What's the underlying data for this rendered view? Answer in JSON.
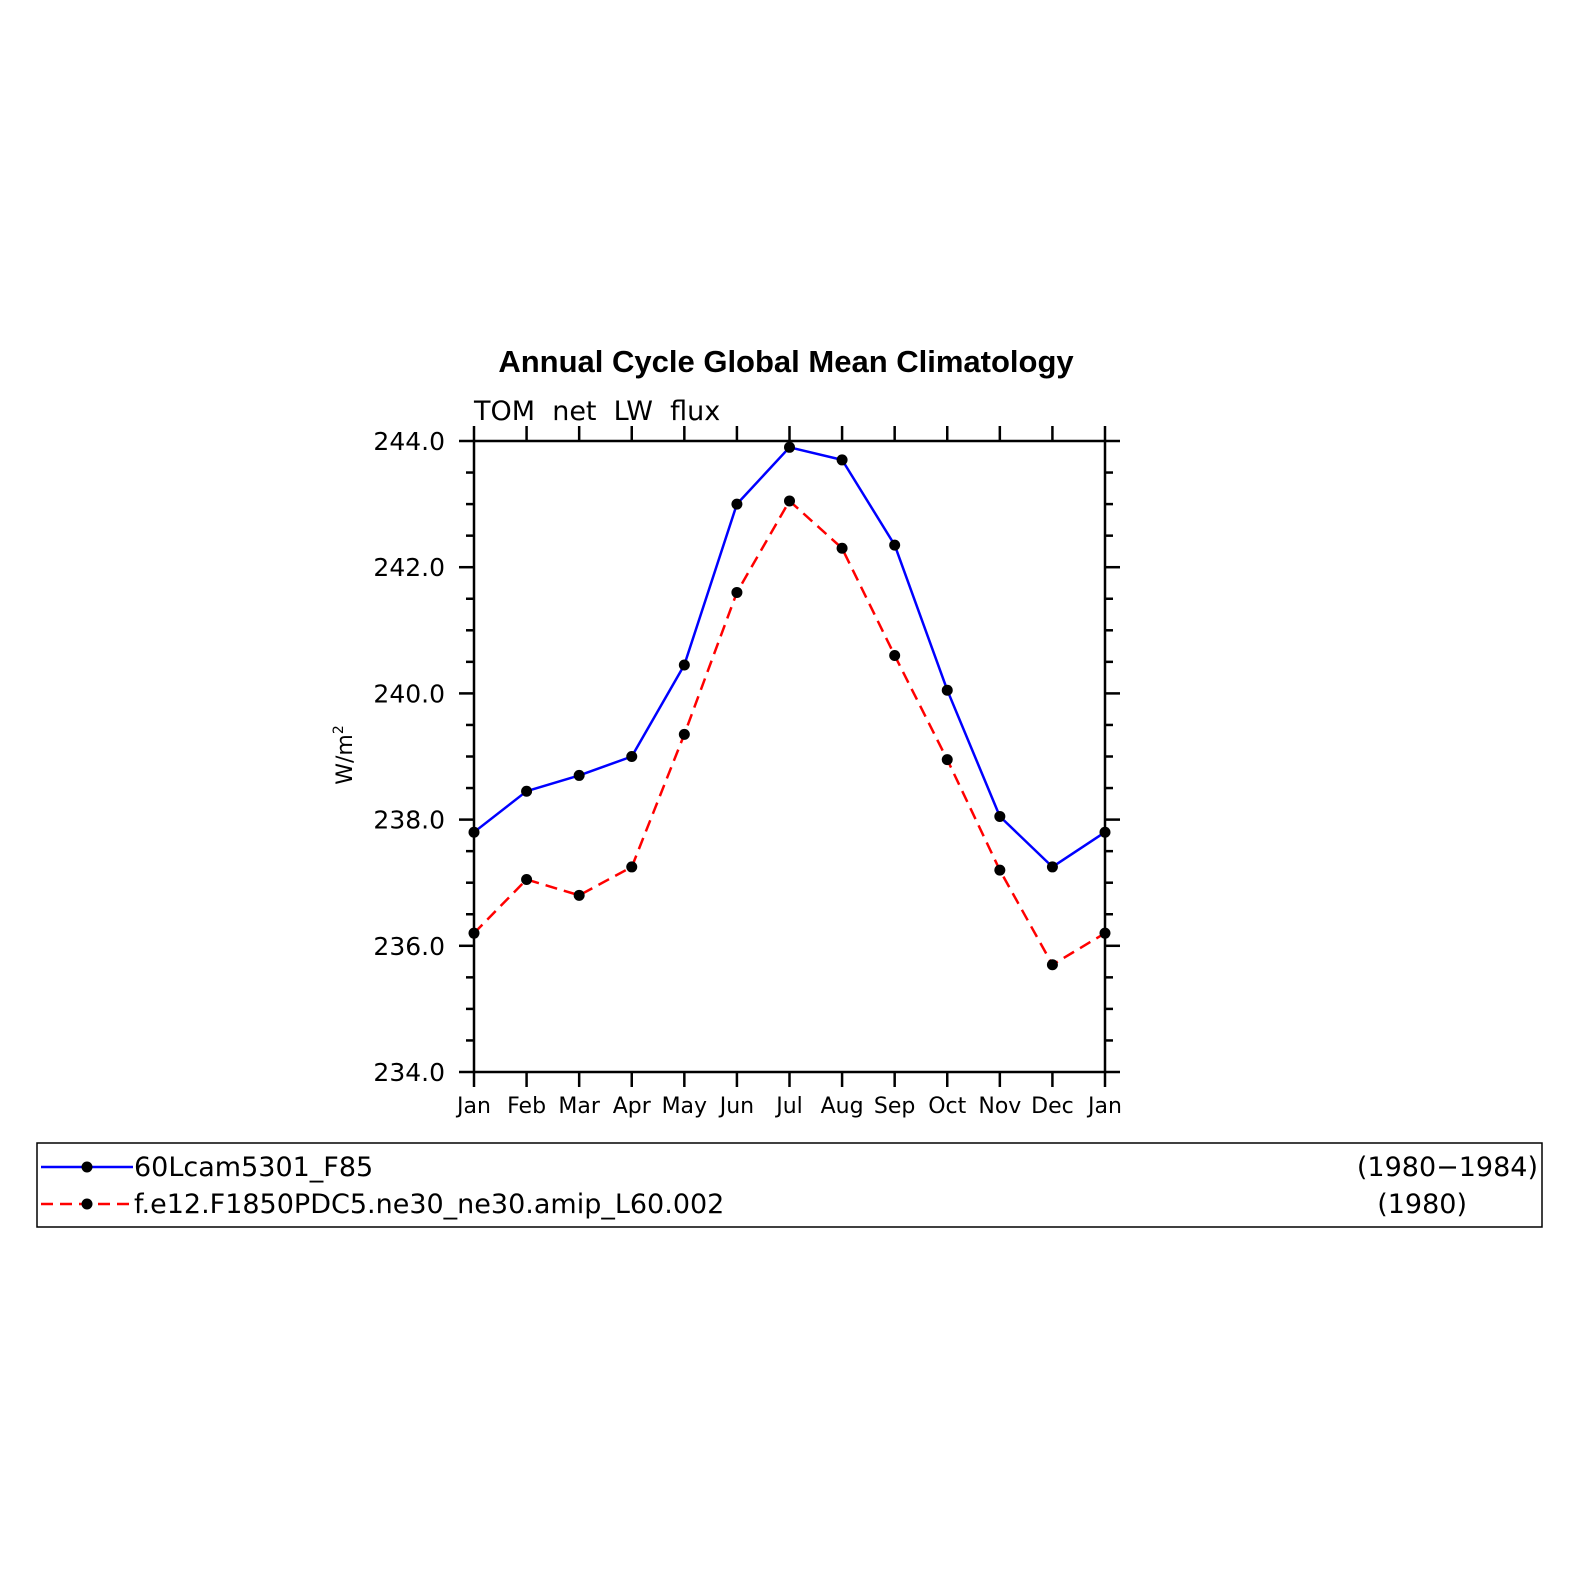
{
  "chart_data": {
    "type": "line",
    "title": "Annual Cycle Global Mean Climatology",
    "subtitle": "TOM  net  LW  flux",
    "ylabel": "W/m",
    "ylabel_sup": "2",
    "ylim": [
      234.0,
      244.0
    ],
    "yticks": [
      "234.0",
      "236.0",
      "238.0",
      "240.0",
      "242.0",
      "244.0"
    ],
    "categories": [
      "Jan",
      "Feb",
      "Mar",
      "Apr",
      "May",
      "Jun",
      "Jul",
      "Aug",
      "Sep",
      "Oct",
      "Nov",
      "Dec",
      "Jan"
    ],
    "series": [
      {
        "name": "60Lcam5301_F85",
        "period": "(1980−1984)",
        "color": "#0000ff",
        "dash": "solid",
        "values": [
          237.8,
          238.45,
          238.7,
          239.0,
          240.45,
          243.0,
          243.9,
          243.7,
          242.35,
          240.05,
          238.05,
          237.25,
          237.8
        ]
      },
      {
        "name": "f.e12.F1850PDC5.ne30_ne30.amip_L60.002",
        "period": "(1980)",
        "color": "#ff0000",
        "dash": "dashed",
        "values": [
          236.2,
          237.05,
          236.8,
          237.25,
          239.35,
          241.6,
          243.05,
          242.3,
          240.6,
          238.95,
          237.2,
          235.7,
          236.2
        ]
      }
    ],
    "grid": false,
    "legend_position": "bottom"
  }
}
